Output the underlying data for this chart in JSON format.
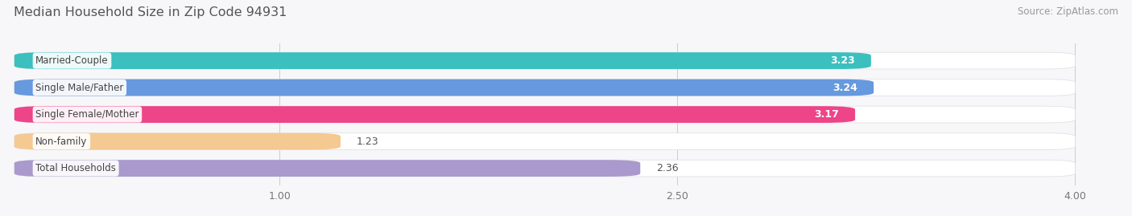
{
  "title": "Median Household Size in Zip Code 94931",
  "source": "Source: ZipAtlas.com",
  "categories": [
    "Married-Couple",
    "Single Male/Father",
    "Single Female/Mother",
    "Non-family",
    "Total Households"
  ],
  "values": [
    3.23,
    3.24,
    3.17,
    1.23,
    2.36
  ],
  "bar_colors": [
    "#3bbfbf",
    "#6699dd",
    "#ee4488",
    "#f5c992",
    "#aa99cc"
  ],
  "xlim_min": 0.0,
  "xlim_max": 4.0,
  "xticks": [
    1.0,
    2.5,
    4.0
  ],
  "background_color": "#f7f7f9",
  "bar_bg_color": "#ebebf0",
  "title_fontsize": 11.5,
  "source_fontsize": 8.5,
  "label_fontsize": 8.5,
  "value_fontsize": 9,
  "bar_height": 0.62,
  "fig_width": 14.06,
  "fig_height": 2.69
}
